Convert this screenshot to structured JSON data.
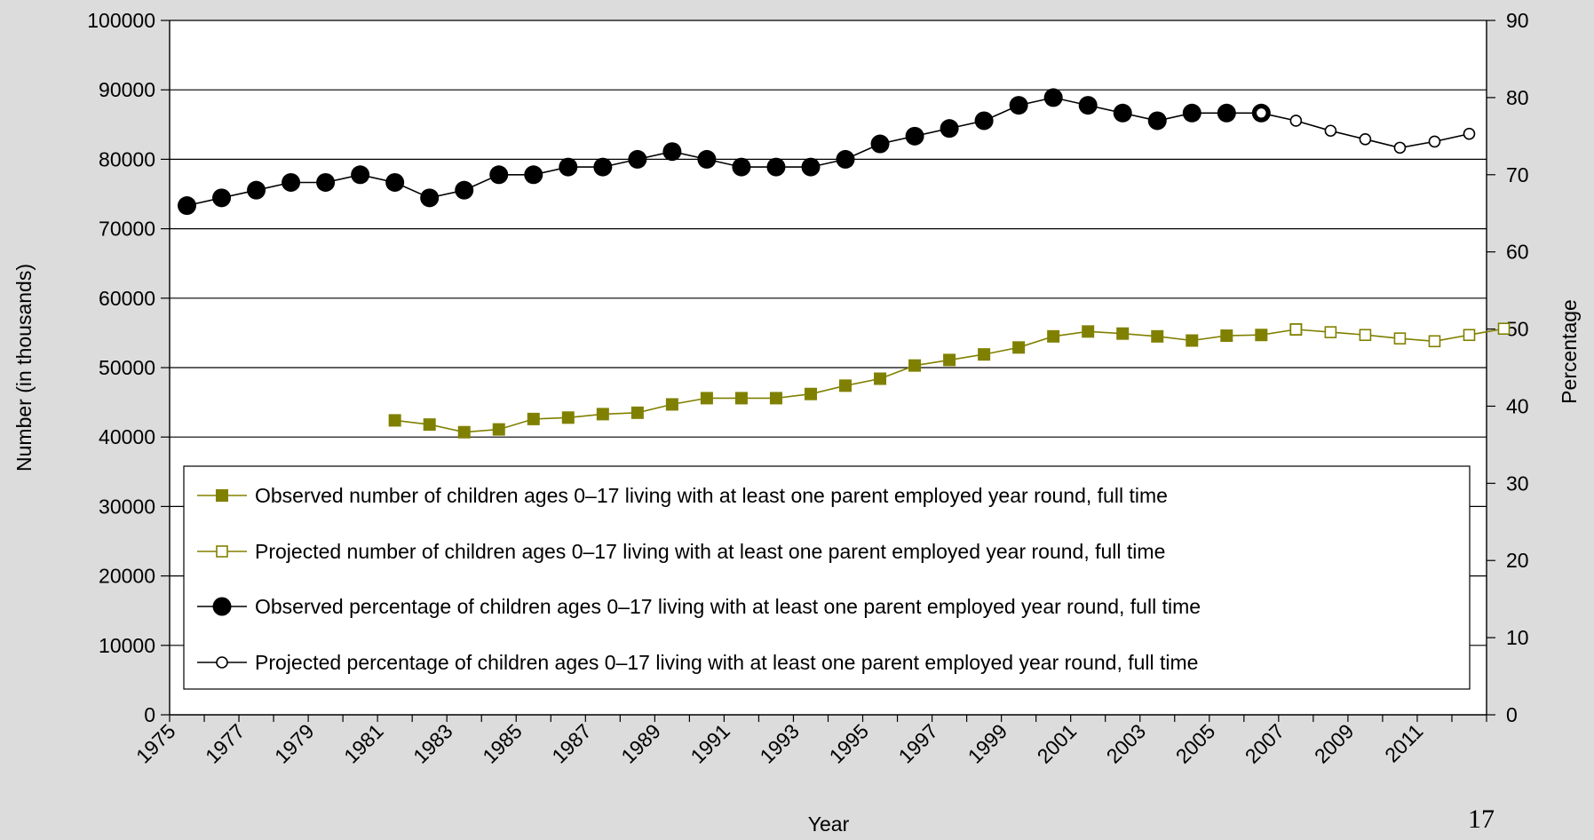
{
  "chart_data": {
    "type": "line",
    "title": "",
    "xlabel": "Year",
    "ylabel_left": "Number (in thousands)",
    "ylabel_right": "Percentage",
    "x": [
      1975,
      1976,
      1977,
      1978,
      1979,
      1980,
      1981,
      1982,
      1983,
      1984,
      1985,
      1986,
      1987,
      1988,
      1989,
      1990,
      1991,
      1992,
      1993,
      1994,
      1995,
      1996,
      1997,
      1998,
      1999,
      2000,
      2001,
      2002,
      2003,
      2004,
      2005,
      2006,
      2007,
      2008,
      2009,
      2010,
      2011,
      2012
    ],
    "x_tick_labels": [
      "1975",
      "1977",
      "1979",
      "1981",
      "1983",
      "1985",
      "1987",
      "1989",
      "1991",
      "1993",
      "1995",
      "1997",
      "1999",
      "2001",
      "2003",
      "2005",
      "2007",
      "2009",
      "2011"
    ],
    "ylim_left": [
      0,
      100000
    ],
    "yticks_left": [
      "0",
      "10000",
      "20000",
      "30000",
      "40000",
      "50000",
      "60000",
      "70000",
      "80000",
      "90000",
      "100000"
    ],
    "ylim_right": [
      0,
      90
    ],
    "yticks_right": [
      "0",
      "10",
      "20",
      "30",
      "40",
      "50",
      "60",
      "70",
      "80",
      "90"
    ],
    "grid": "horizontal",
    "legend_position": "lower-center",
    "series": [
      {
        "name": "Observed number of children ages 0–17 living with at least one parent employed year round, full time",
        "axis": "left",
        "marker": "filled-square",
        "color": "#808000",
        "x": [
          1981,
          1982,
          1983,
          1984,
          1985,
          1986,
          1987,
          1988,
          1989,
          1990,
          1991,
          1992,
          1993,
          1994,
          1995,
          1996,
          1997,
          1998,
          1999,
          2000,
          2001,
          2002,
          2003,
          2004,
          2005,
          2006,
          2007
        ],
        "values": [
          42400,
          41800,
          40700,
          41100,
          42600,
          42800,
          43300,
          43500,
          44700,
          45600,
          45600,
          45600,
          46200,
          47400,
          48400,
          50300,
          51100,
          51900,
          52900,
          54500,
          55200,
          54900,
          54500,
          53900,
          54600,
          54700,
          55500
        ]
      },
      {
        "name": "Projected number of children ages 0–17 living with at least one parent employed year round, full time",
        "axis": "left",
        "marker": "open-square",
        "color": "#808000",
        "x": [
          2007,
          2008,
          2009,
          2010,
          2011,
          2012,
          2013
        ],
        "values": [
          55500,
          55100,
          54700,
          54200,
          53800,
          54700,
          55600
        ]
      },
      {
        "name": "Observed percentage of children ages 0–17 living with at least one parent employed year round, full time",
        "axis": "right",
        "marker": "filled-circle",
        "color": "#000000",
        "x": [
          1975,
          1976,
          1977,
          1978,
          1979,
          1980,
          1981,
          1982,
          1983,
          1984,
          1985,
          1986,
          1987,
          1988,
          1989,
          1990,
          1991,
          1992,
          1993,
          1994,
          1995,
          1996,
          1997,
          1998,
          1999,
          2000,
          2001,
          2002,
          2003,
          2004,
          2005,
          2006
        ],
        "values": [
          66,
          67,
          68,
          69,
          69,
          70,
          69,
          67,
          68,
          70,
          70,
          71,
          71,
          72,
          73,
          72,
          71,
          71,
          71,
          72,
          74,
          75,
          76,
          77,
          79,
          80,
          79,
          78,
          77,
          78,
          78,
          78
        ]
      },
      {
        "name": "Projected percentage of children ages 0–17 living with at least one parent employed year round, full time",
        "axis": "right",
        "marker": "open-circle",
        "color": "#000000",
        "x": [
          2006,
          2007,
          2008,
          2009,
          2010,
          2011,
          2012
        ],
        "values": [
          78,
          77,
          75.7,
          74.6,
          73.5,
          74.3,
          75.3
        ]
      }
    ]
  },
  "page_number": "17"
}
